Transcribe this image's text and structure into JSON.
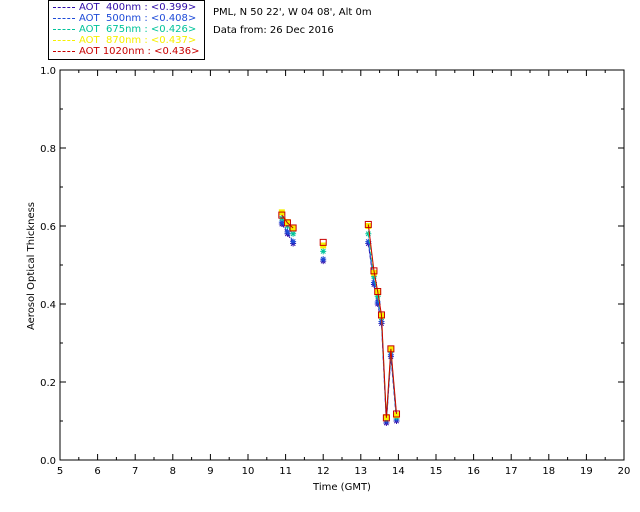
{
  "header": {
    "location": "PML, N 50 22', W 04 08', Alt 0m",
    "date": "Data from: 26 Dec 2016"
  },
  "legend": [
    {
      "label": "AOT  400nm : <0.399>",
      "color": "#2e0ca8"
    },
    {
      "label": "AOT  500nm : <0.408>",
      "color": "#1e4bd8"
    },
    {
      "label": "AOT  675nm : <0.426>",
      "color": "#00c39a"
    },
    {
      "label": "AOT  870nm : <0.437>",
      "color": "#f6f000"
    },
    {
      "label": "AOT 1020nm : <0.436>",
      "color": "#c80000"
    }
  ],
  "chart_data": {
    "type": "line",
    "title": "",
    "xlabel": "Time (GMT)",
    "ylabel": "Aerosol Optical Thickness",
    "xlim": [
      5,
      20
    ],
    "ylim": [
      0.0,
      1.0
    ],
    "xticks": [
      "5",
      "6",
      "7",
      "8",
      "9",
      "10",
      "11",
      "12",
      "13",
      "14",
      "15",
      "16",
      "17",
      "18",
      "19",
      "20"
    ],
    "yticks": [
      "0.0",
      "0.2",
      "0.4",
      "0.6",
      "0.8",
      "1.0"
    ],
    "grid": false,
    "legend_position": "top-left",
    "x": [
      10.9,
      11.05,
      11.2,
      12.0,
      13.2,
      13.35,
      13.45,
      13.55,
      13.68,
      13.8,
      13.95,
      14.05
    ],
    "series": [
      {
        "name": "AOT  400nm : <0.399>",
        "color": "#2e0ca8",
        "values": [
          0.605,
          0.58,
          0.555,
          0.51,
          0.555,
          0.45,
          0.4,
          0.35,
          0.095,
          0.265,
          0.1,
          null
        ]
      },
      {
        "name": "AOT  500nm : <0.408>",
        "color": "#1e4bd8",
        "values": [
          0.61,
          0.585,
          0.56,
          0.515,
          0.56,
          0.455,
          0.405,
          0.355,
          0.1,
          0.27,
          0.105,
          null
        ]
      },
      {
        "name": "AOT  675nm : <0.426>",
        "color": "#00c39a",
        "values": [
          0.62,
          0.6,
          0.58,
          0.535,
          0.58,
          0.47,
          0.42,
          0.365,
          0.105,
          0.28,
          0.11,
          null
        ]
      },
      {
        "name": "AOT  870nm : <0.437>",
        "color": "#f6f000",
        "values": [
          0.635,
          0.61,
          0.595,
          0.55,
          0.6,
          0.48,
          0.43,
          0.37,
          0.11,
          0.285,
          0.115,
          null
        ]
      },
      {
        "name": "AOT 1020nm : <0.436>",
        "color": "#c80000",
        "values": [
          0.628,
          0.608,
          0.595,
          0.558,
          0.604,
          0.485,
          0.432,
          0.372,
          0.108,
          0.285,
          0.118,
          null
        ]
      }
    ]
  }
}
